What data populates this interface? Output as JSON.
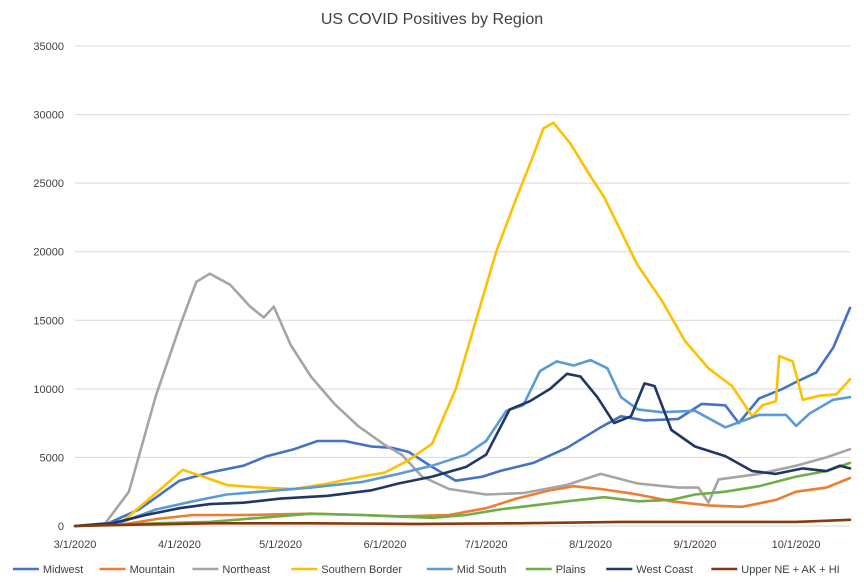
{
  "chart_data": {
    "type": "line",
    "title": "US COVID Positives by Region",
    "xlabel": "",
    "ylabel": "",
    "ylim": [
      0,
      35000
    ],
    "yticks": [
      "0",
      "5000",
      "10000",
      "15000",
      "20000",
      "25000",
      "30000",
      "35000"
    ],
    "yticks_values": [
      0,
      5000,
      10000,
      15000,
      20000,
      25000,
      30000,
      35000
    ],
    "xlim": [
      "3/1/2020",
      "10/17/2020"
    ],
    "xticks": [
      "3/1/2020",
      "4/1/2020",
      "5/1/2020",
      "6/1/2020",
      "7/1/2020",
      "8/1/2020",
      "9/1/2020",
      "10/1/2020"
    ],
    "grid": true,
    "legend_position": "bottom",
    "series": [
      {
        "name": "Midwest",
        "color": "#4472C4",
        "points": [
          [
            "3/1/2020",
            0
          ],
          [
            "3/10/2020",
            100
          ],
          [
            "3/20/2020",
            1200
          ],
          [
            "4/1/2020",
            3300
          ],
          [
            "4/10/2020",
            3900
          ],
          [
            "4/20/2020",
            4400
          ],
          [
            "4/27/2020",
            5100
          ],
          [
            "5/5/2020",
            5600
          ],
          [
            "5/12/2020",
            6200
          ],
          [
            "5/20/2020",
            6200
          ],
          [
            "5/28/2020",
            5800
          ],
          [
            "6/3/2020",
            5700
          ],
          [
            "6/8/2020",
            5400
          ],
          [
            "6/15/2020",
            4300
          ],
          [
            "6/22/2020",
            3300
          ],
          [
            "6/30/2020",
            3600
          ],
          [
            "7/5/2020",
            4000
          ],
          [
            "7/15/2020",
            4600
          ],
          [
            "7/25/2020",
            5700
          ],
          [
            "8/4/2020",
            7200
          ],
          [
            "8/10/2020",
            8000
          ],
          [
            "8/17/2020",
            7700
          ],
          [
            "8/27/2020",
            7800
          ],
          [
            "9/3/2020",
            8900
          ],
          [
            "9/10/2020",
            8800
          ],
          [
            "9/14/2020",
            7500
          ],
          [
            "9/20/2020",
            9300
          ],
          [
            "9/27/2020",
            10000
          ],
          [
            "10/1/2020",
            10500
          ],
          [
            "10/7/2020",
            11200
          ],
          [
            "10/12/2020",
            13000
          ],
          [
            "10/17/2020",
            15900
          ]
        ]
      },
      {
        "name": "Mountain",
        "color": "#ED7D31",
        "points": [
          [
            "3/1/2020",
            0
          ],
          [
            "3/15/2020",
            100
          ],
          [
            "3/25/2020",
            500
          ],
          [
            "4/5/2020",
            800
          ],
          [
            "4/20/2020",
            800
          ],
          [
            "5/10/2020",
            900
          ],
          [
            "5/25/2020",
            800
          ],
          [
            "6/5/2020",
            700
          ],
          [
            "6/20/2020",
            800
          ],
          [
            "7/1/2020",
            1300
          ],
          [
            "7/10/2020",
            2000
          ],
          [
            "7/20/2020",
            2600
          ],
          [
            "7/27/2020",
            2900
          ],
          [
            "8/4/2020",
            2700
          ],
          [
            "8/15/2020",
            2300
          ],
          [
            "8/25/2020",
            1800
          ],
          [
            "9/5/2020",
            1500
          ],
          [
            "9/15/2020",
            1400
          ],
          [
            "9/25/2020",
            1900
          ],
          [
            "10/1/2020",
            2500
          ],
          [
            "10/10/2020",
            2800
          ],
          [
            "10/17/2020",
            3500
          ]
        ]
      },
      {
        "name": "Northeast",
        "color": "#A5A5A5",
        "points": [
          [
            "3/1/2020",
            0
          ],
          [
            "3/10/2020",
            200
          ],
          [
            "3/17/2020",
            2500
          ],
          [
            "3/25/2020",
            9500
          ],
          [
            "4/1/2020",
            14500
          ],
          [
            "4/6/2020",
            17800
          ],
          [
            "4/10/2020",
            18400
          ],
          [
            "4/16/2020",
            17600
          ],
          [
            "4/22/2020",
            16000
          ],
          [
            "4/26/2020",
            15200
          ],
          [
            "4/29/2020",
            16000
          ],
          [
            "5/4/2020",
            13200
          ],
          [
            "5/10/2020",
            10900
          ],
          [
            "5/17/2020",
            8900
          ],
          [
            "5/24/2020",
            7300
          ],
          [
            "6/1/2020",
            5900
          ],
          [
            "6/6/2020",
            5200
          ],
          [
            "6/12/2020",
            3600
          ],
          [
            "6/20/2020",
            2700
          ],
          [
            "7/1/2020",
            2300
          ],
          [
            "7/12/2020",
            2400
          ],
          [
            "7/25/2020",
            3000
          ],
          [
            "8/4/2020",
            3800
          ],
          [
            "8/15/2020",
            3100
          ],
          [
            "8/27/2020",
            2800
          ],
          [
            "9/2/2020",
            2800
          ],
          [
            "9/5/2020",
            1700
          ],
          [
            "9/8/2020",
            3400
          ],
          [
            "9/20/2020",
            3800
          ],
          [
            "10/1/2020",
            4400
          ],
          [
            "10/10/2020",
            5000
          ],
          [
            "10/17/2020",
            5600
          ]
        ]
      },
      {
        "name": "Southern Border",
        "color": "#FFC000",
        "points": [
          [
            "3/1/2020",
            0
          ],
          [
            "3/15/2020",
            300
          ],
          [
            "3/25/2020",
            2400
          ],
          [
            "4/2/2020",
            4100
          ],
          [
            "4/8/2020",
            3600
          ],
          [
            "4/15/2020",
            3000
          ],
          [
            "4/25/2020",
            2800
          ],
          [
            "5/5/2020",
            2700
          ],
          [
            "5/15/2020",
            3100
          ],
          [
            "5/25/2020",
            3600
          ],
          [
            "6/1/2020",
            3900
          ],
          [
            "6/8/2020",
            4800
          ],
          [
            "6/15/2020",
            6000
          ],
          [
            "6/22/2020",
            10000
          ],
          [
            "6/28/2020",
            15000
          ],
          [
            "7/4/2020",
            20000
          ],
          [
            "7/10/2020",
            23900
          ],
          [
            "7/15/2020",
            27000
          ],
          [
            "7/18/2020",
            29000
          ],
          [
            "7/21/2020",
            29400
          ],
          [
            "7/26/2020",
            27900
          ],
          [
            "8/1/2020",
            25500
          ],
          [
            "8/5/2020",
            24000
          ],
          [
            "8/10/2020",
            21500
          ],
          [
            "8/15/2020",
            19000
          ],
          [
            "8/22/2020",
            16500
          ],
          [
            "8/29/2020",
            13500
          ],
          [
            "9/5/2020",
            11500
          ],
          [
            "9/12/2020",
            10200
          ],
          [
            "9/18/2020",
            8000
          ],
          [
            "9/21/2020",
            8800
          ],
          [
            "9/25/2020",
            9100
          ],
          [
            "9/26/2020",
            12400
          ],
          [
            "9/30/2020",
            12000
          ],
          [
            "10/3/2020",
            9200
          ],
          [
            "10/8/2020",
            9500
          ],
          [
            "10/13/2020",
            9600
          ],
          [
            "10/17/2020",
            10700
          ]
        ]
      },
      {
        "name": "Mid South",
        "color": "#5B9BD5",
        "points": [
          [
            "3/1/2020",
            0
          ],
          [
            "3/15/2020",
            300
          ],
          [
            "3/25/2020",
            1200
          ],
          [
            "4/5/2020",
            1800
          ],
          [
            "4/15/2020",
            2300
          ],
          [
            "4/25/2020",
            2500
          ],
          [
            "5/10/2020",
            2800
          ],
          [
            "5/25/2020",
            3200
          ],
          [
            "6/5/2020",
            3800
          ],
          [
            "6/15/2020",
            4400
          ],
          [
            "6/25/2020",
            5200
          ],
          [
            "7/1/2020",
            6200
          ],
          [
            "7/7/2020",
            8400
          ],
          [
            "7/12/2020",
            8800
          ],
          [
            "7/17/2020",
            11300
          ],
          [
            "7/22/2020",
            12000
          ],
          [
            "7/27/2020",
            11700
          ],
          [
            "8/1/2020",
            12100
          ],
          [
            "8/6/2020",
            11500
          ],
          [
            "8/10/2020",
            9400
          ],
          [
            "8/15/2020",
            8500
          ],
          [
            "8/22/2020",
            8300
          ],
          [
            "9/1/2020",
            8400
          ],
          [
            "9/10/2020",
            7200
          ],
          [
            "9/20/2020",
            8100
          ],
          [
            "9/28/2020",
            8100
          ],
          [
            "10/1/2020",
            7300
          ],
          [
            "10/5/2020",
            8200
          ],
          [
            "10/12/2020",
            9200
          ],
          [
            "10/17/2020",
            9400
          ]
        ]
      },
      {
        "name": "Plains",
        "color": "#70AD47",
        "points": [
          [
            "3/1/2020",
            0
          ],
          [
            "3/15/2020",
            100
          ],
          [
            "3/25/2020",
            200
          ],
          [
            "4/10/2020",
            300
          ],
          [
            "4/25/2020",
            600
          ],
          [
            "5/10/2020",
            900
          ],
          [
            "5/25/2020",
            800
          ],
          [
            "6/5/2020",
            700
          ],
          [
            "6/15/2020",
            600
          ],
          [
            "6/25/2020",
            800
          ],
          [
            "7/5/2020",
            1200
          ],
          [
            "7/15/2020",
            1500
          ],
          [
            "7/25/2020",
            1800
          ],
          [
            "8/5/2020",
            2100
          ],
          [
            "8/15/2020",
            1800
          ],
          [
            "8/25/2020",
            1900
          ],
          [
            "9/1/2020",
            2300
          ],
          [
            "9/10/2020",
            2500
          ],
          [
            "9/20/2020",
            2900
          ],
          [
            "10/1/2020",
            3600
          ],
          [
            "10/10/2020",
            4000
          ],
          [
            "10/17/2020",
            4600
          ]
        ]
      },
      {
        "name": "West Coast",
        "color": "#203864",
        "points": [
          [
            "3/1/2020",
            0
          ],
          [
            "3/12/2020",
            200
          ],
          [
            "3/22/2020",
            800
          ],
          [
            "4/1/2020",
            1300
          ],
          [
            "4/10/2020",
            1600
          ],
          [
            "4/20/2020",
            1700
          ],
          [
            "5/1/2020",
            2000
          ],
          [
            "5/15/2020",
            2200
          ],
          [
            "5/28/2020",
            2600
          ],
          [
            "6/5/2020",
            3100
          ],
          [
            "6/15/2020",
            3600
          ],
          [
            "6/25/2020",
            4300
          ],
          [
            "7/1/2020",
            5200
          ],
          [
            "7/8/2020",
            8500
          ],
          [
            "7/14/2020",
            9100
          ],
          [
            "7/20/2020",
            10000
          ],
          [
            "7/25/2020",
            11100
          ],
          [
            "7/29/2020",
            10900
          ],
          [
            "8/3/2020",
            9400
          ],
          [
            "8/8/2020",
            7500
          ],
          [
            "8/13/2020",
            8000
          ],
          [
            "8/17/2020",
            10400
          ],
          [
            "8/20/2020",
            10200
          ],
          [
            "8/25/2020",
            7000
          ],
          [
            "9/1/2020",
            5800
          ],
          [
            "9/10/2020",
            5100
          ],
          [
            "9/18/2020",
            4000
          ],
          [
            "9/25/2020",
            3800
          ],
          [
            "10/3/2020",
            4200
          ],
          [
            "10/10/2020",
            4000
          ],
          [
            "10/14/2020",
            4400
          ],
          [
            "10/17/2020",
            4200
          ]
        ]
      },
      {
        "name": "Upper NE + AK + HI",
        "color": "#843C0C",
        "points": [
          [
            "3/1/2020",
            0
          ],
          [
            "3/20/2020",
            100
          ],
          [
            "4/10/2020",
            200
          ],
          [
            "5/10/2020",
            200
          ],
          [
            "6/10/2020",
            150
          ],
          [
            "7/10/2020",
            200
          ],
          [
            "8/10/2020",
            300
          ],
          [
            "9/10/2020",
            300
          ],
          [
            "10/1/2020",
            300
          ],
          [
            "10/17/2020",
            450
          ]
        ]
      }
    ]
  }
}
